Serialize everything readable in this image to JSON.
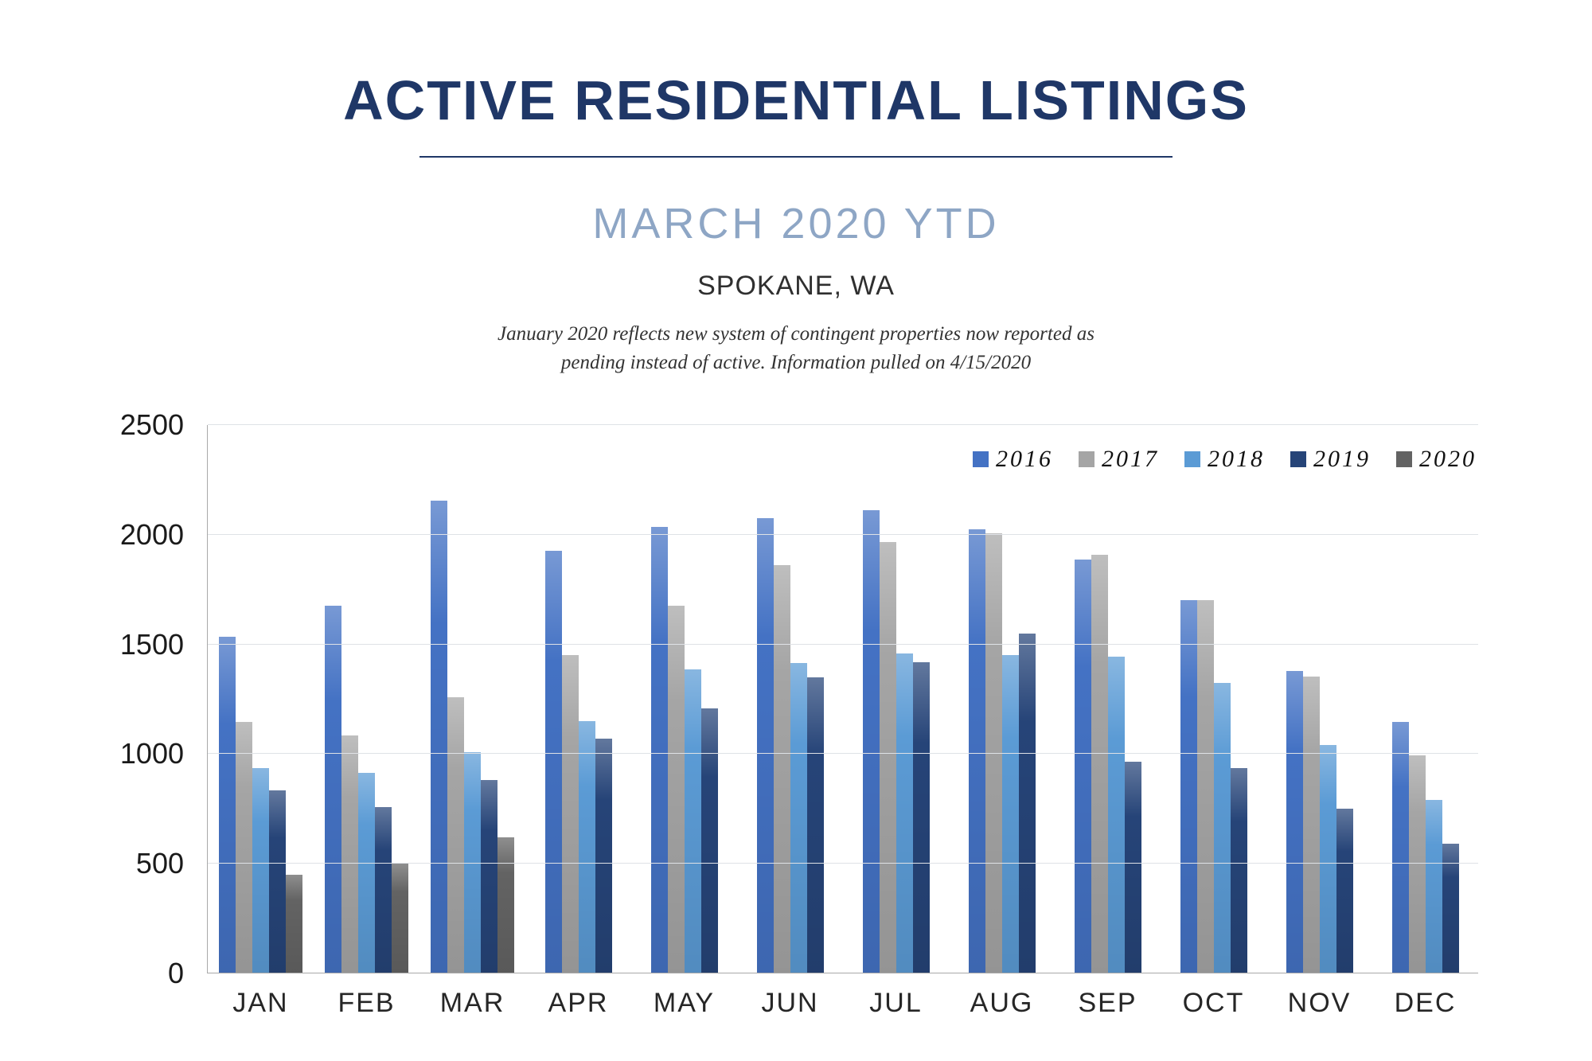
{
  "header": {
    "title": "ACTIVE RESIDENTIAL LISTINGS",
    "subtitle": "MARCH 2020 YTD",
    "location": "SPOKANE, WA",
    "note_line1": "January 2020 reflects new system of contingent properties now reported as",
    "note_line2": "pending instead of active.  Information pulled on 4/15/2020"
  },
  "chart_data": {
    "type": "bar",
    "title": "Active Residential Listings by month, Spokane WA",
    "categories": [
      "JAN",
      "FEB",
      "MAR",
      "APR",
      "MAY",
      "JUN",
      "JUL",
      "AUG",
      "SEP",
      "OCT",
      "NOV",
      "DEC"
    ],
    "series": [
      {
        "name": "2016",
        "color": "#4472C4",
        "values": [
          1535,
          1675,
          2155,
          1925,
          2035,
          2075,
          2110,
          2025,
          1885,
          1700,
          1380,
          1145
        ]
      },
      {
        "name": "2017",
        "color": "#A5A5A5",
        "values": [
          1145,
          1085,
          1260,
          1450,
          1675,
          1860,
          1965,
          2005,
          1910,
          1700,
          1355,
          995
        ]
      },
      {
        "name": "2018",
        "color": "#5B9BD5",
        "values": [
          935,
          915,
          1010,
          1150,
          1385,
          1415,
          1460,
          1450,
          1445,
          1325,
          1040,
          790
        ]
      },
      {
        "name": "2019",
        "color": "#264478",
        "values": [
          835,
          760,
          880,
          1070,
          1210,
          1350,
          1420,
          1550,
          965,
          935,
          750,
          590
        ]
      },
      {
        "name": "2020",
        "color": "#636363",
        "values": [
          450,
          500,
          620,
          null,
          null,
          null,
          null,
          null,
          null,
          null,
          null,
          null
        ]
      }
    ],
    "ylim": [
      0,
      2500
    ],
    "yticks": [
      0,
      500,
      1000,
      1500,
      2000,
      2500
    ],
    "grid": true,
    "legend_position": "top-right"
  }
}
